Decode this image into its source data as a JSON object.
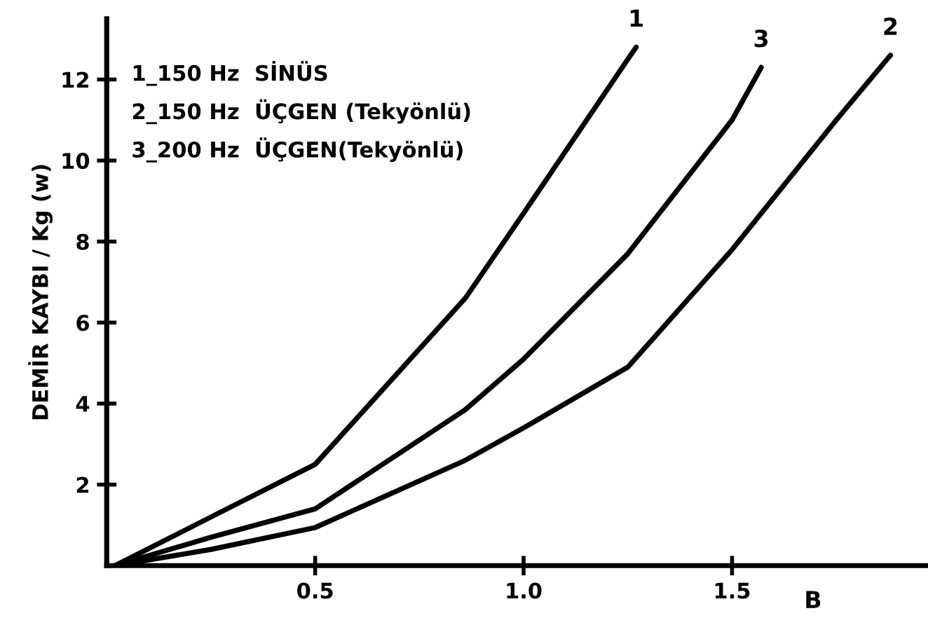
{
  "chart_data": {
    "type": "line",
    "xlabel": "B",
    "ylabel": "DEMİR KAYBI / Kg (w)",
    "annotations": [
      "1_150 Hz  SİNÜS",
      "2_150 Hz  ÜÇGEN (Tekyönlü)",
      "3_200 Hz  ÜÇGEN(Tekyönlü)"
    ],
    "xlim": [
      0,
      1.97
    ],
    "ylim": [
      0,
      13.5
    ],
    "xticks": [
      {
        "value": 0.5,
        "label": "0.5"
      },
      {
        "value": 1.0,
        "label": "1.0"
      },
      {
        "value": 1.5,
        "label": "1.5"
      }
    ],
    "yticks": [
      2,
      4,
      6,
      8,
      10,
      12
    ],
    "grid": false,
    "legend": false,
    "marker": "none",
    "line_style": "solid",
    "series": [
      {
        "name": "1",
        "color": "#000000",
        "x": [
          0.02,
          0.25,
          0.5,
          0.86,
          1.0,
          1.25,
          1.27
        ],
        "values": [
          0,
          1.2,
          2.5,
          6.6,
          8.7,
          12.5,
          12.8
        ]
      },
      {
        "name": "3",
        "color": "#000000",
        "x": [
          0.02,
          0.25,
          0.5,
          0.86,
          1.0,
          1.25,
          1.5,
          1.57
        ],
        "values": [
          0,
          0.7,
          1.4,
          3.85,
          5.1,
          7.7,
          11.0,
          12.3
        ]
      },
      {
        "name": "2",
        "color": "#000000",
        "x": [
          0.02,
          0.25,
          0.5,
          0.86,
          1.0,
          1.25,
          1.5,
          1.75,
          1.88
        ],
        "values": [
          0,
          0.4,
          0.94,
          2.6,
          3.4,
          4.9,
          7.8,
          11.0,
          12.6
        ]
      }
    ]
  }
}
